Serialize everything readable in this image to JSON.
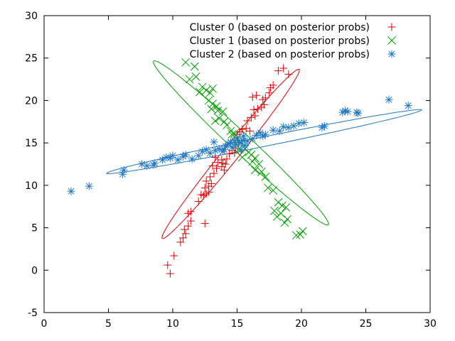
{
  "chart_data": {
    "type": "scatter",
    "xlim": [
      0,
      30
    ],
    "ylim": [
      -5,
      30
    ],
    "x_ticks": [
      "0",
      "5",
      "10",
      "15",
      "20",
      "25",
      "30"
    ],
    "y_ticks": [
      "-5",
      "0",
      "5",
      "10",
      "15",
      "20",
      "25",
      "30"
    ],
    "grid": false,
    "legend_position": "top-right",
    "series": [
      {
        "name": "Cluster 0 (based on posterior probs)",
        "color": "#e00000",
        "marker": "plus",
        "points": [
          [
            9.6,
            0.6
          ],
          [
            9.8,
            -0.4
          ],
          [
            10.1,
            1.7
          ],
          [
            10.6,
            3.3
          ],
          [
            10.8,
            3.8
          ],
          [
            11.0,
            4.3
          ],
          [
            10.9,
            4.8
          ],
          [
            11.2,
            5.2
          ],
          [
            11.4,
            5.8
          ],
          [
            11.2,
            6.7
          ],
          [
            11.4,
            6.9
          ],
          [
            12.0,
            8.1
          ],
          [
            12.4,
            8.8
          ],
          [
            12.6,
            9.0
          ],
          [
            12.8,
            9.2
          ],
          [
            12.5,
            9.7
          ],
          [
            12.8,
            9.9
          ],
          [
            13.0,
            10.2
          ],
          [
            12.6,
            10.5
          ],
          [
            12.9,
            11.0
          ],
          [
            13.2,
            11.4
          ],
          [
            13.4,
            12.0
          ],
          [
            13.1,
            12.3
          ],
          [
            13.5,
            12.7
          ],
          [
            13.8,
            12.2
          ],
          [
            13.9,
            12.6
          ],
          [
            14.1,
            12.5
          ],
          [
            14.2,
            13.1
          ],
          [
            14.4,
            13.7
          ],
          [
            14.6,
            14.1
          ],
          [
            14.8,
            13.8
          ],
          [
            14.9,
            14.4
          ],
          [
            12.5,
            5.5
          ],
          [
            15.1,
            15.0
          ],
          [
            15.0,
            16.0
          ],
          [
            15.2,
            16.3
          ],
          [
            15.4,
            16.6
          ],
          [
            15.7,
            16.7
          ],
          [
            16.0,
            16.4
          ],
          [
            15.8,
            17.6
          ],
          [
            16.1,
            18.0
          ],
          [
            16.3,
            18.9
          ],
          [
            16.6,
            19.0
          ],
          [
            16.9,
            19.2
          ],
          [
            17.1,
            19.5
          ],
          [
            16.2,
            20.4
          ],
          [
            16.5,
            20.6
          ],
          [
            17.2,
            20.3
          ],
          [
            17.5,
            20.9
          ],
          [
            17.6,
            21.5
          ],
          [
            17.8,
            21.8
          ],
          [
            18.2,
            23.5
          ],
          [
            18.6,
            23.8
          ],
          [
            19.0,
            23.1
          ],
          [
            13.8,
            13.0
          ],
          [
            13.3,
            13.3
          ],
          [
            14.0,
            11.8
          ],
          [
            12.2,
            8.9
          ],
          [
            17.0,
            20.1
          ],
          [
            16.4,
            18.2
          ]
        ]
      },
      {
        "name": "Cluster 1 (based on posterior probs)",
        "color": "#00a000",
        "marker": "cross",
        "points": [
          [
            11.0,
            24.5
          ],
          [
            11.3,
            22.5
          ],
          [
            11.8,
            22.8
          ],
          [
            11.7,
            24.0
          ],
          [
            12.1,
            21.0
          ],
          [
            12.6,
            21.2
          ],
          [
            12.9,
            20.9
          ],
          [
            13.1,
            21.4
          ],
          [
            12.8,
            20.0
          ],
          [
            13.1,
            19.6
          ],
          [
            13.4,
            19.3
          ],
          [
            13.0,
            19.0
          ],
          [
            13.5,
            18.8
          ],
          [
            13.9,
            18.7
          ],
          [
            13.6,
            17.9
          ],
          [
            14.0,
            17.5
          ],
          [
            14.2,
            17.1
          ],
          [
            14.5,
            16.4
          ],
          [
            14.8,
            16.1
          ],
          [
            15.0,
            15.4
          ],
          [
            15.3,
            15.0
          ],
          [
            15.6,
            14.3
          ],
          [
            15.9,
            13.9
          ],
          [
            15.4,
            13.3
          ],
          [
            16.1,
            13.6
          ],
          [
            16.4,
            13.2
          ],
          [
            16.2,
            12.8
          ],
          [
            16.7,
            12.5
          ],
          [
            16.4,
            11.8
          ],
          [
            16.9,
            11.6
          ],
          [
            17.2,
            11.0
          ],
          [
            17.4,
            9.7
          ],
          [
            17.8,
            9.4
          ],
          [
            18.2,
            8.0
          ],
          [
            18.5,
            7.6
          ],
          [
            18.8,
            7.4
          ],
          [
            18.4,
            6.7
          ],
          [
            18.1,
            6.3
          ],
          [
            17.9,
            7.0
          ],
          [
            18.7,
            5.6
          ],
          [
            18.9,
            6.0
          ],
          [
            19.6,
            4.1
          ],
          [
            19.9,
            4.2
          ],
          [
            20.1,
            4.6
          ],
          [
            14.6,
            16.0
          ],
          [
            15.1,
            14.2
          ],
          [
            13.3,
            17.6
          ],
          [
            12.3,
            21.6
          ]
        ]
      },
      {
        "name": "Cluster 2 (based on posterior probs)",
        "color": "#1e78c8",
        "marker": "star",
        "points": [
          [
            2.1,
            9.3
          ],
          [
            3.5,
            9.9
          ],
          [
            6.1,
            11.3
          ],
          [
            6.2,
            11.8
          ],
          [
            7.6,
            12.5
          ],
          [
            8.0,
            12.3
          ],
          [
            8.5,
            12.4
          ],
          [
            8.6,
            12.6
          ],
          [
            9.2,
            13.0
          ],
          [
            9.5,
            13.3
          ],
          [
            9.8,
            13.2
          ],
          [
            10.0,
            13.5
          ],
          [
            10.4,
            13.0
          ],
          [
            10.8,
            13.4
          ],
          [
            11.0,
            13.6
          ],
          [
            11.5,
            13.1
          ],
          [
            12.0,
            13.5
          ],
          [
            12.3,
            14.0
          ],
          [
            12.6,
            14.2
          ],
          [
            12.9,
            13.8
          ],
          [
            13.3,
            14.1
          ],
          [
            13.6,
            14.3
          ],
          [
            13.9,
            14.0
          ],
          [
            14.1,
            14.6
          ],
          [
            14.3,
            14.9
          ],
          [
            14.5,
            15.1
          ],
          [
            14.6,
            14.5
          ],
          [
            14.8,
            15.3
          ],
          [
            14.9,
            14.8
          ],
          [
            15.0,
            15.6
          ],
          [
            15.2,
            15.0
          ],
          [
            15.4,
            15.3
          ],
          [
            15.5,
            15.8
          ],
          [
            15.6,
            14.7
          ],
          [
            15.8,
            15.2
          ],
          [
            16.2,
            15.5
          ],
          [
            16.5,
            15.9
          ],
          [
            16.8,
            16.2
          ],
          [
            17.0,
            15.8
          ],
          [
            17.2,
            16.0
          ],
          [
            17.8,
            16.5
          ],
          [
            18.3,
            16.4
          ],
          [
            18.6,
            16.9
          ],
          [
            19.0,
            16.8
          ],
          [
            19.4,
            17.0
          ],
          [
            19.8,
            17.3
          ],
          [
            20.2,
            17.4
          ],
          [
            21.6,
            16.8
          ],
          [
            21.8,
            17.0
          ],
          [
            23.2,
            18.6
          ],
          [
            23.4,
            18.8
          ],
          [
            23.6,
            18.7
          ],
          [
            24.3,
            18.6
          ],
          [
            24.4,
            18.5
          ],
          [
            26.8,
            20.1
          ],
          [
            28.3,
            19.4
          ],
          [
            13.2,
            15.1
          ],
          [
            14.0,
            14.2
          ],
          [
            15.3,
            14.2
          ]
        ]
      }
    ],
    "ellipses": [
      {
        "series": 0,
        "cx": 14.5,
        "cy": 13.7,
        "semi_major": 11.3,
        "semi_minor": 0.7,
        "angle_deg": 62
      },
      {
        "series": 1,
        "cx": 15.3,
        "cy": 15.0,
        "semi_major": 11.8,
        "semi_minor": 0.9,
        "angle_deg": -55
      },
      {
        "series": 2,
        "cx": 17.1,
        "cy": 15.15,
        "semi_major": 12.8,
        "semi_minor": 0.55,
        "angle_deg": 17
      }
    ]
  }
}
